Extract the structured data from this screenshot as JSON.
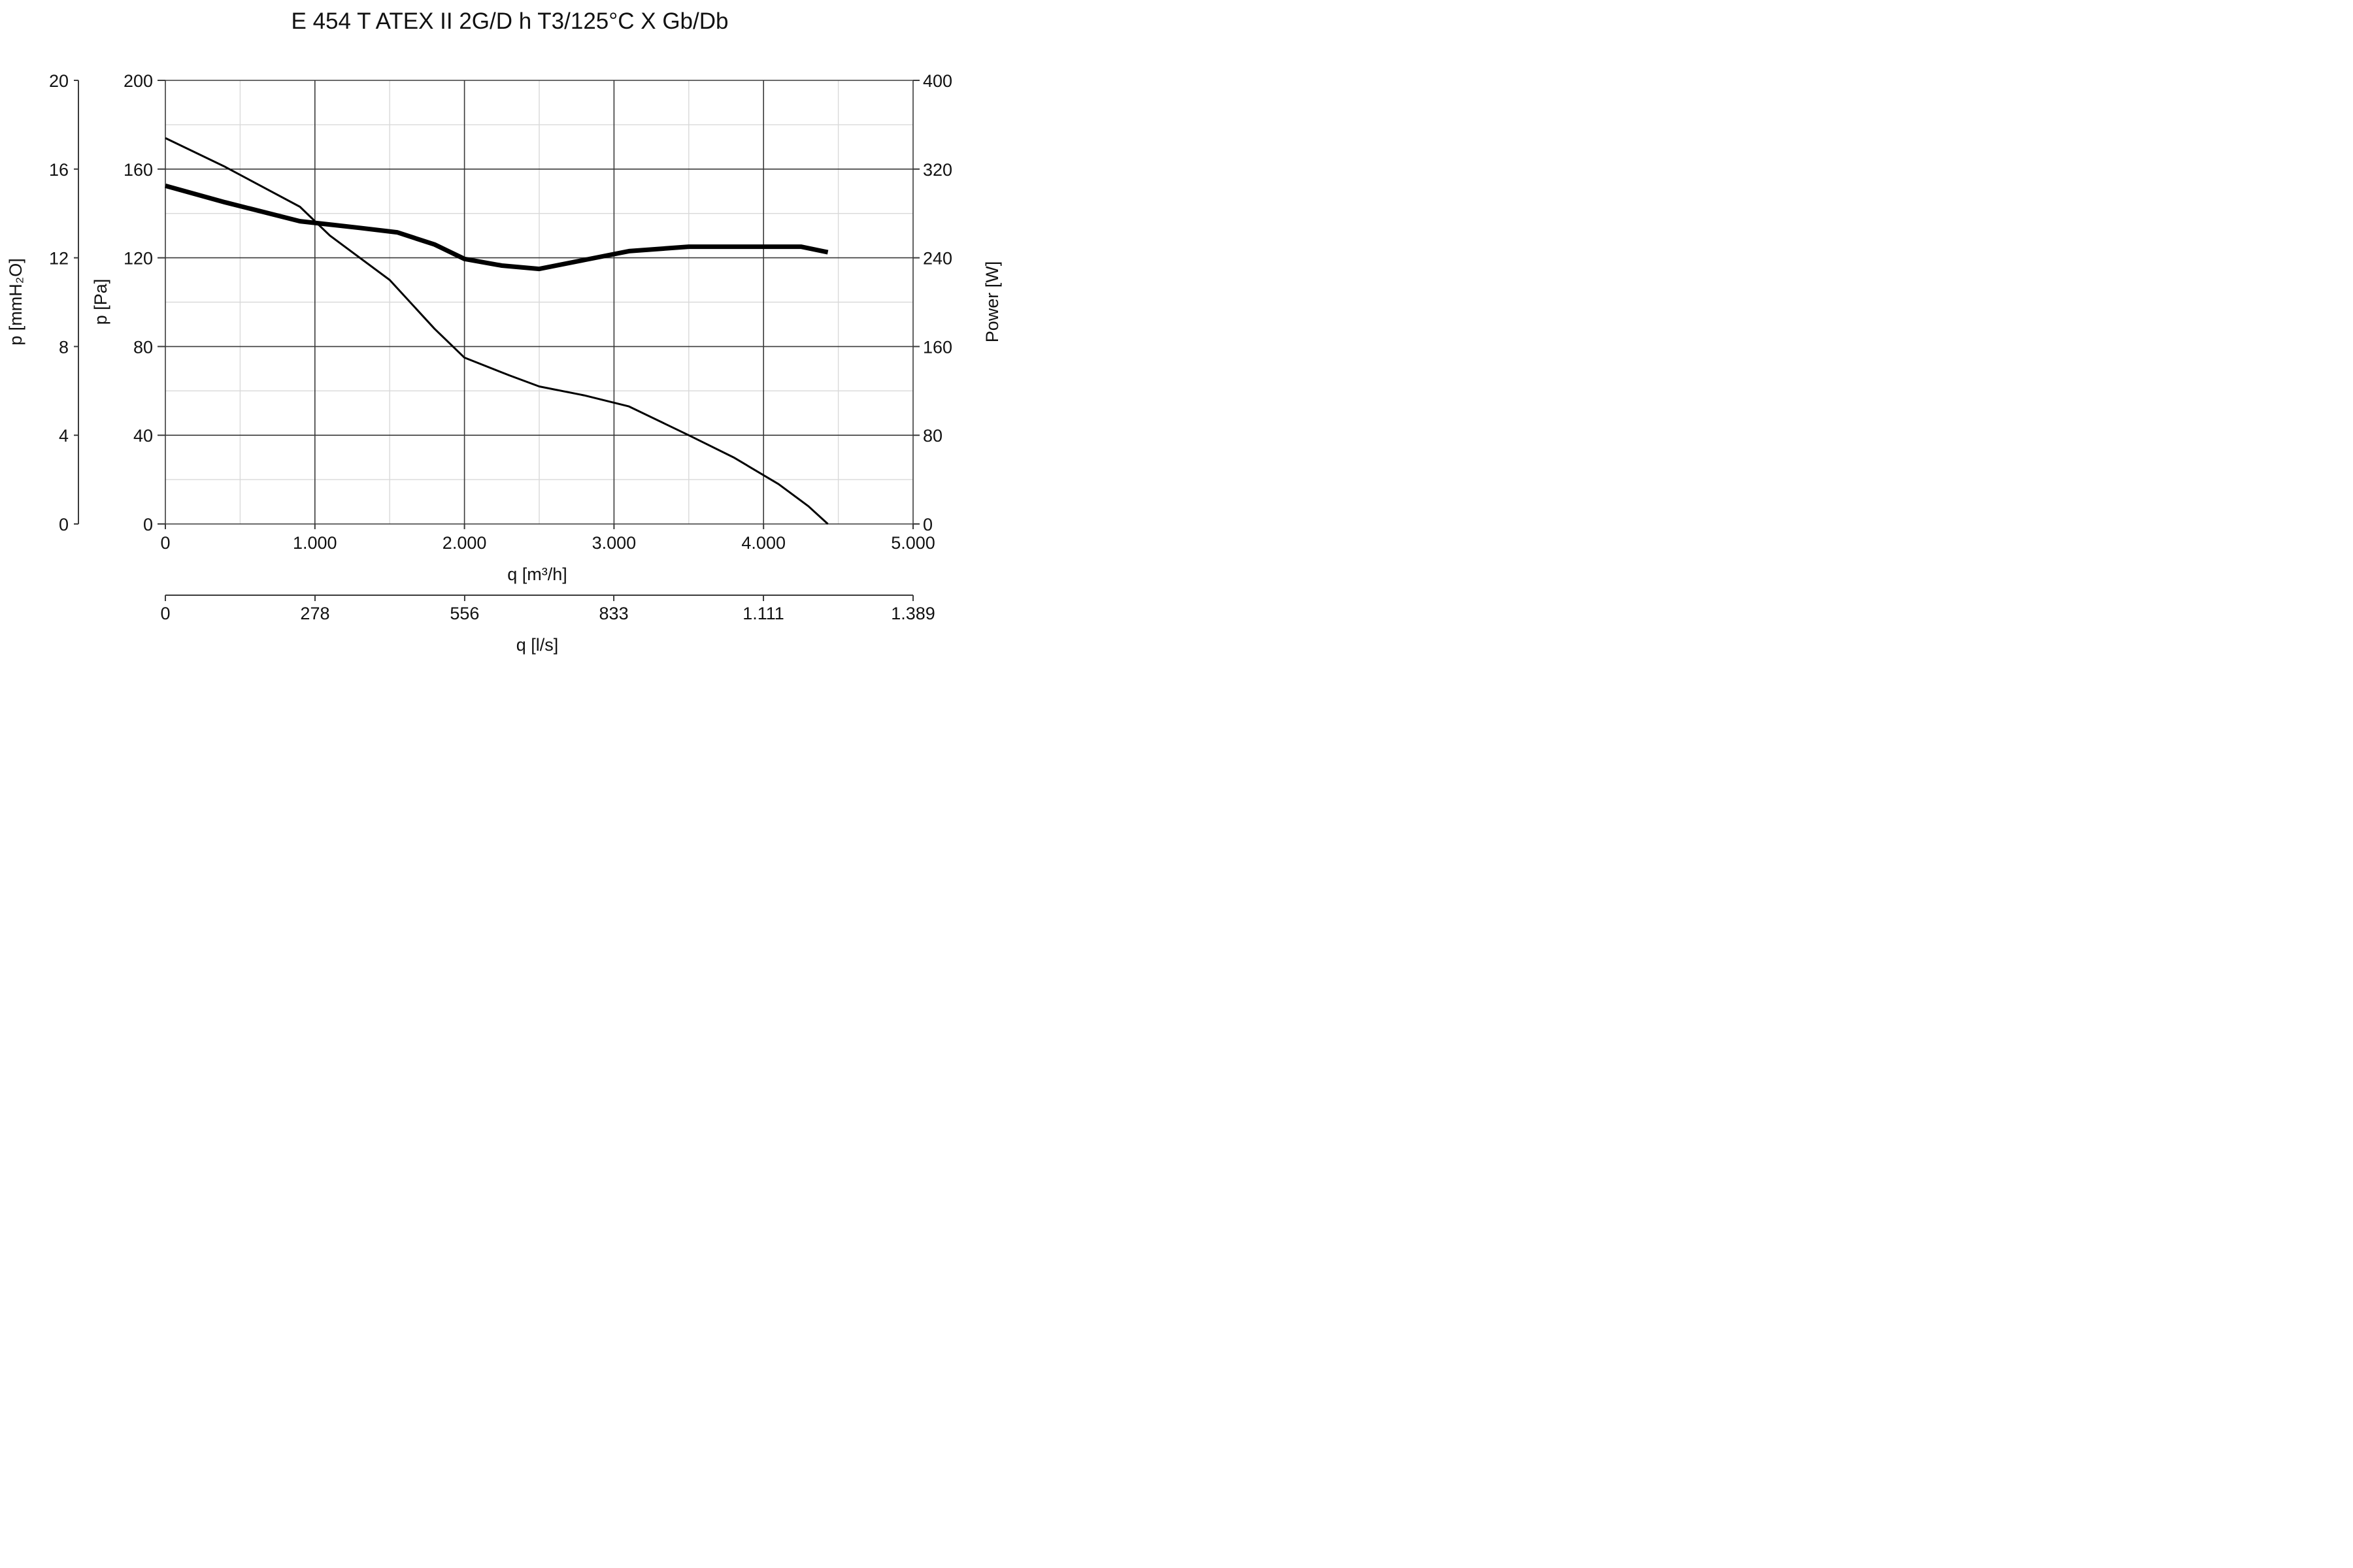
{
  "chart_data": {
    "type": "line",
    "title": "E 454 T ATEX II 2G/D h T3/125°C X Gb/Db",
    "x_axis": {
      "label": "q [m³/h]",
      "range": [
        0,
        5000
      ],
      "ticks": [
        0,
        1000,
        2000,
        3000,
        4000,
        5000
      ],
      "tick_labels": [
        "0",
        "1.000",
        "2.000",
        "3.000",
        "4.000",
        "5.000"
      ],
      "minor_gridlines": [
        500,
        1500,
        2500,
        3500,
        4500
      ]
    },
    "x_axis_secondary": {
      "label": "q [l/s]",
      "range": [
        0,
        1389
      ],
      "ticks": [
        0,
        278,
        556,
        833,
        1111,
        1389
      ],
      "tick_labels": [
        "0",
        "278",
        "556",
        "833",
        "1.111",
        "1.389"
      ]
    },
    "y_axis_left": {
      "label": "p [Pa]",
      "range": [
        0,
        200
      ],
      "ticks": [
        0,
        40,
        80,
        120,
        160,
        200
      ],
      "tick_labels": [
        "0",
        "40",
        "80",
        "120",
        "160",
        "200"
      ],
      "minor_gridlines": [
        20,
        60,
        100,
        140,
        180
      ]
    },
    "y_axis_left_outer": {
      "label": "p [mmH₂O]",
      "range": [
        0,
        20
      ],
      "ticks": [
        0,
        4,
        8,
        12,
        16,
        20
      ],
      "tick_labels": [
        "0",
        "4",
        "8",
        "12",
        "16",
        "20"
      ]
    },
    "y_axis_right": {
      "label": "Power [W]",
      "range": [
        0,
        400
      ],
      "ticks": [
        0,
        80,
        160,
        240,
        320,
        400
      ],
      "tick_labels": [
        "0",
        "80",
        "160",
        "240",
        "320",
        "400"
      ]
    },
    "grid": true,
    "series": [
      {
        "axis": "left",
        "line_weight": "thin",
        "x": [
          0,
          400,
          900,
          1100,
          1500,
          1800,
          2000,
          2300,
          2500,
          2800,
          3100,
          3500,
          3800,
          4100,
          4300,
          4430
        ],
        "y": [
          174,
          161,
          143,
          130,
          110,
          88,
          75,
          67,
          62,
          58,
          53,
          40,
          30,
          18,
          8,
          0
        ]
      },
      {
        "axis": "right",
        "line_weight": "thick",
        "x": [
          0,
          400,
          900,
          1300,
          1550,
          1800,
          2000,
          2250,
          2500,
          2800,
          3100,
          3500,
          4000,
          4250,
          4430
        ],
        "y": [
          305,
          290,
          273,
          267,
          263,
          252,
          239,
          233,
          230,
          238,
          246,
          250,
          250,
          250,
          245
        ]
      }
    ]
  }
}
